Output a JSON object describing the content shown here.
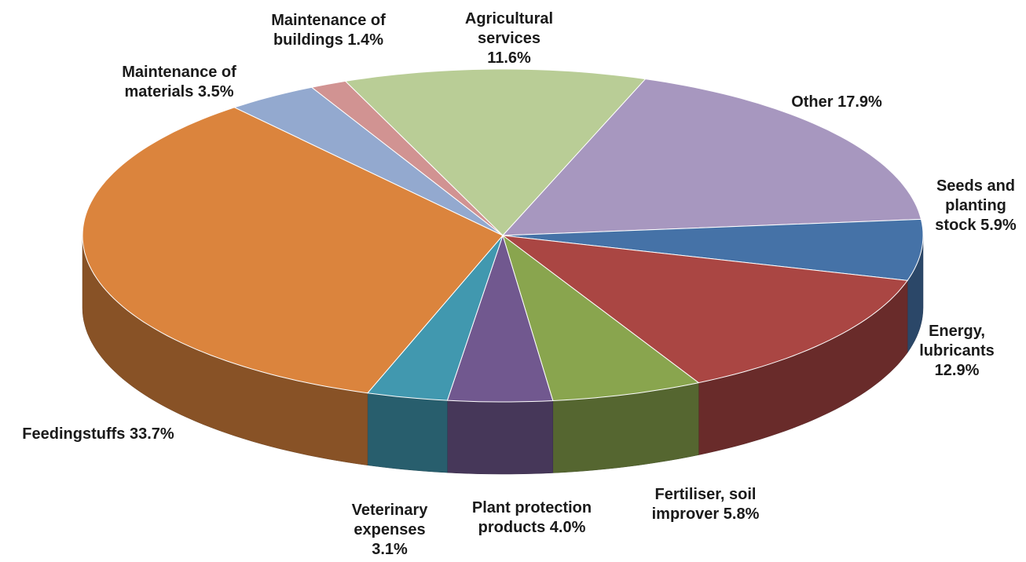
{
  "chart_data": {
    "type": "pie",
    "categories": [
      "Agricultural services",
      "Other",
      "Seeds and planting stock",
      "Energy, lubricants",
      "Fertiliser, soil improver",
      "Plant protection products",
      "Veterinary expenses",
      "Feedingstuffs",
      "Maintenance of materials",
      "Maintenance of buildings"
    ],
    "values": [
      11.6,
      17.9,
      5.9,
      12.9,
      5.8,
      4.0,
      3.1,
      33.7,
      3.5,
      1.4
    ],
    "value_labels": [
      "11.6%",
      "17.9%",
      "5.9%",
      "12.9%",
      "5.8%",
      "4.0%",
      "3.1%",
      "33.7%",
      "3.5%",
      "1.4%"
    ],
    "colors": [
      "#b9cd96",
      "#a797bf",
      "#4572a7",
      "#aa4643",
      "#89a54e",
      "#71588f",
      "#4198af",
      "#db843d",
      "#93a9cf",
      "#d19392"
    ]
  }
}
